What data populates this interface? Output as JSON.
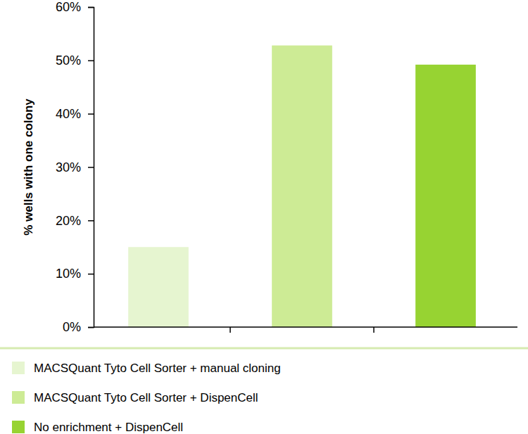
{
  "chart_data": {
    "type": "bar",
    "y_label": "% wells with one colony",
    "categories": [
      "MACSQuant Tyto Cell Sorter + manual cloning",
      "MACSQuant Tyto Cell Sorter + DispenCell",
      "No enrichment + DispenCell"
    ],
    "values": [
      15,
      52.8,
      49.2
    ],
    "colors": [
      "#e6f5d0",
      "#cdeb95",
      "#97d332"
    ],
    "ylim": [
      0,
      60
    ],
    "yticks": [
      {
        "value": 0,
        "label": "0%"
      },
      {
        "value": 10,
        "label": "10%"
      },
      {
        "value": 20,
        "label": "20%"
      },
      {
        "value": 30,
        "label": "30%"
      },
      {
        "value": 40,
        "label": "40%"
      },
      {
        "value": 50,
        "label": "50%"
      },
      {
        "value": 60,
        "label": "60%"
      }
    ],
    "tick_labels": "y",
    "legend": "bottom"
  }
}
